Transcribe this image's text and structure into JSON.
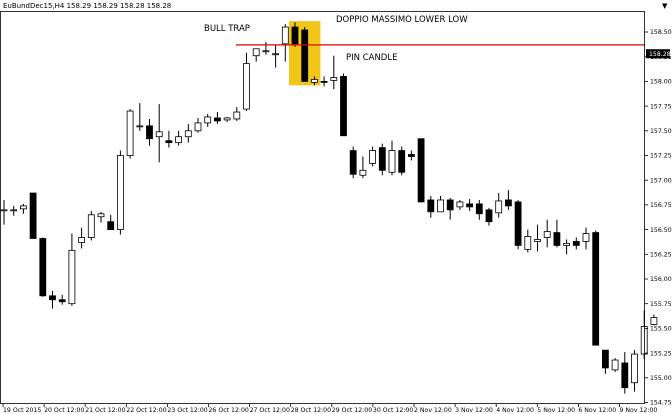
{
  "header": {
    "symbol_info": "EuBundDec15,H4  158.29 158.29 158.28 158.28",
    "corner_arrow": "▼"
  },
  "annotations": {
    "bull_trap": "BULL TRAP",
    "doppio_massimo": "DOPPIO MASSIMO LOWER LOW",
    "pin_candle": "PIN CANDLE"
  },
  "colors": {
    "background": "#ffffff",
    "candle_up_body": "#ffffff",
    "candle_down_body": "#000000",
    "candle_outline": "#000000",
    "resistance_line": "#e00000",
    "highlight": "#f0c000",
    "price_tag_bg": "#000000"
  },
  "chart_data": {
    "type": "candlestick",
    "current_price": "158.28",
    "resistance_level": 158.37,
    "highlight": {
      "from_candle": 30,
      "to_candle": 32,
      "low": 157.96,
      "high": 158.61
    },
    "y_ticks": [
      "158.50",
      "158.25",
      "158.00",
      "157.75",
      "157.50",
      "157.25",
      "157.00",
      "156.75",
      "156.50",
      "156.25",
      "156.00",
      "155.75",
      "155.50",
      "155.25",
      "155.00",
      "154.75"
    ],
    "x_ticks": [
      "19 Oct 2015",
      "20 Oct 12:00",
      "21 Oct 12:00",
      "22 Oct 12:00",
      "23 Oct 12:00",
      "26 Oct 12:00",
      "27 Oct 12:00",
      "28 Oct 12:00",
      "29 Oct 12:00",
      "30 Oct 12:00",
      "2 Nov 12:00",
      "3 Nov 12:00",
      "4 Nov 12:00",
      "5 Nov 12:00",
      "6 Nov 12:00",
      "9 Nov 12:00"
    ],
    "candles": [
      {
        "o": 156.7,
        "h": 156.8,
        "l": 156.55,
        "c": 156.7
      },
      {
        "o": 156.69,
        "h": 156.74,
        "l": 156.64,
        "c": 156.7
      },
      {
        "o": 156.71,
        "h": 156.76,
        "l": 156.66,
        "c": 156.74
      },
      {
        "o": 156.87,
        "h": 156.87,
        "l": 156.41,
        "c": 156.41
      },
      {
        "o": 156.41,
        "h": 156.42,
        "l": 155.82,
        "c": 155.83
      },
      {
        "o": 155.83,
        "h": 155.88,
        "l": 155.7,
        "c": 155.79
      },
      {
        "o": 155.79,
        "h": 155.84,
        "l": 155.74,
        "c": 155.77
      },
      {
        "o": 155.75,
        "h": 156.46,
        "l": 155.73,
        "c": 156.29
      },
      {
        "o": 156.37,
        "h": 156.52,
        "l": 156.31,
        "c": 156.42
      },
      {
        "o": 156.42,
        "h": 156.69,
        "l": 156.39,
        "c": 156.65
      },
      {
        "o": 156.63,
        "h": 156.68,
        "l": 156.57,
        "c": 156.66
      },
      {
        "o": 156.58,
        "h": 156.65,
        "l": 156.5,
        "c": 156.5
      },
      {
        "o": 156.5,
        "h": 157.3,
        "l": 156.45,
        "c": 157.25
      },
      {
        "o": 157.25,
        "h": 157.72,
        "l": 157.22,
        "c": 157.7
      },
      {
        "o": 157.55,
        "h": 157.78,
        "l": 157.5,
        "c": 157.55
      },
      {
        "o": 157.55,
        "h": 157.62,
        "l": 157.35,
        "c": 157.42
      },
      {
        "o": 157.44,
        "h": 157.77,
        "l": 157.18,
        "c": 157.49
      },
      {
        "o": 157.4,
        "h": 157.5,
        "l": 157.33,
        "c": 157.38
      },
      {
        "o": 157.38,
        "h": 157.5,
        "l": 157.35,
        "c": 157.44
      },
      {
        "o": 157.44,
        "h": 157.57,
        "l": 157.38,
        "c": 157.5
      },
      {
        "o": 157.5,
        "h": 157.63,
        "l": 157.48,
        "c": 157.58
      },
      {
        "o": 157.58,
        "h": 157.67,
        "l": 157.54,
        "c": 157.64
      },
      {
        "o": 157.63,
        "h": 157.69,
        "l": 157.57,
        "c": 157.6
      },
      {
        "o": 157.61,
        "h": 157.64,
        "l": 157.59,
        "c": 157.63
      },
      {
        "o": 157.62,
        "h": 157.74,
        "l": 157.6,
        "c": 157.69
      },
      {
        "o": 157.72,
        "h": 158.29,
        "l": 157.7,
        "c": 158.18
      },
      {
        "o": 158.26,
        "h": 158.33,
        "l": 158.2,
        "c": 158.33
      },
      {
        "o": 158.3,
        "h": 158.4,
        "l": 158.27,
        "c": 158.31
      },
      {
        "o": 158.28,
        "h": 158.37,
        "l": 158.14,
        "c": 158.28
      },
      {
        "o": 158.38,
        "h": 158.58,
        "l": 158.2,
        "c": 158.55
      },
      {
        "o": 158.55,
        "h": 158.6,
        "l": 158.35,
        "c": 158.38
      },
      {
        "o": 158.52,
        "h": 158.55,
        "l": 158.0,
        "c": 158.0
      },
      {
        "o": 157.99,
        "h": 158.05,
        "l": 157.96,
        "c": 158.02
      },
      {
        "o": 158.0,
        "h": 158.05,
        "l": 157.95,
        "c": 157.99
      },
      {
        "o": 158.01,
        "h": 158.26,
        "l": 157.92,
        "c": 158.04
      },
      {
        "o": 158.05,
        "h": 158.08,
        "l": 157.45,
        "c": 157.45
      },
      {
        "o": 157.3,
        "h": 157.34,
        "l": 157.02,
        "c": 157.06
      },
      {
        "o": 157.05,
        "h": 157.24,
        "l": 157.02,
        "c": 157.1
      },
      {
        "o": 157.17,
        "h": 157.34,
        "l": 157.14,
        "c": 157.3
      },
      {
        "o": 157.33,
        "h": 157.37,
        "l": 157.05,
        "c": 157.1
      },
      {
        "o": 157.08,
        "h": 157.4,
        "l": 157.05,
        "c": 157.3
      },
      {
        "o": 157.3,
        "h": 157.34,
        "l": 157.05,
        "c": 157.08
      },
      {
        "o": 157.26,
        "h": 157.3,
        "l": 157.2,
        "c": 157.24
      },
      {
        "o": 157.42,
        "h": 157.42,
        "l": 156.78,
        "c": 156.78
      },
      {
        "o": 156.8,
        "h": 156.84,
        "l": 156.62,
        "c": 156.68
      },
      {
        "o": 156.68,
        "h": 156.84,
        "l": 156.68,
        "c": 156.8
      },
      {
        "o": 156.8,
        "h": 156.82,
        "l": 156.6,
        "c": 156.7
      },
      {
        "o": 156.73,
        "h": 156.8,
        "l": 156.7,
        "c": 156.78
      },
      {
        "o": 156.76,
        "h": 156.81,
        "l": 156.69,
        "c": 156.73
      },
      {
        "o": 156.76,
        "h": 156.8,
        "l": 156.6,
        "c": 156.66
      },
      {
        "o": 156.7,
        "h": 156.72,
        "l": 156.54,
        "c": 156.58
      },
      {
        "o": 156.67,
        "h": 156.87,
        "l": 156.62,
        "c": 156.79
      },
      {
        "o": 156.8,
        "h": 156.9,
        "l": 156.7,
        "c": 156.74
      },
      {
        "o": 156.78,
        "h": 156.8,
        "l": 156.3,
        "c": 156.34
      },
      {
        "o": 156.3,
        "h": 156.5,
        "l": 156.27,
        "c": 156.43
      },
      {
        "o": 156.38,
        "h": 156.55,
        "l": 156.28,
        "c": 156.4
      },
      {
        "o": 156.42,
        "h": 156.6,
        "l": 156.32,
        "c": 156.48
      },
      {
        "o": 156.47,
        "h": 156.6,
        "l": 156.32,
        "c": 156.34
      },
      {
        "o": 156.34,
        "h": 156.4,
        "l": 156.25,
        "c": 156.36
      },
      {
        "o": 156.38,
        "h": 156.42,
        "l": 156.3,
        "c": 156.34
      },
      {
        "o": 156.38,
        "h": 156.52,
        "l": 156.3,
        "c": 156.46
      },
      {
        "o": 156.47,
        "h": 156.49,
        "l": 155.33,
        "c": 155.33
      },
      {
        "o": 155.28,
        "h": 155.28,
        "l": 155.04,
        "c": 155.1
      },
      {
        "o": 155.08,
        "h": 155.2,
        "l": 155.06,
        "c": 155.18
      },
      {
        "o": 155.15,
        "h": 155.26,
        "l": 154.84,
        "c": 154.9
      },
      {
        "o": 154.95,
        "h": 155.28,
        "l": 154.86,
        "c": 155.24
      },
      {
        "o": 155.24,
        "h": 155.68,
        "l": 155.19,
        "c": 155.52
      },
      {
        "o": 155.54,
        "h": 155.64,
        "l": 155.53,
        "c": 155.61
      }
    ]
  }
}
